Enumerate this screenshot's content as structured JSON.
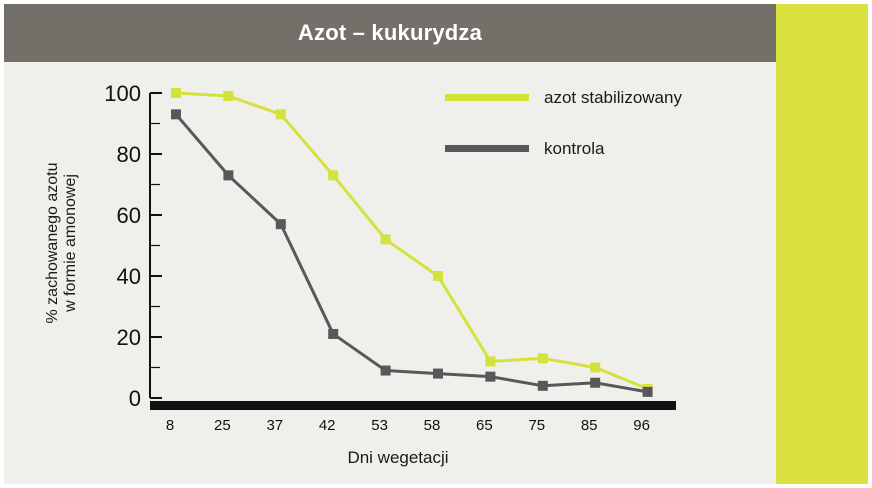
{
  "header": {
    "title": "Azot – kukurydza"
  },
  "colors": {
    "header_bg": "#727069",
    "accent_bar": "#d9e23f",
    "panel_bg": "#efefec"
  },
  "chart_data": {
    "type": "line",
    "title": "Azot – kukurydza",
    "xlabel": "Dni wegetacji",
    "ylabel_lines": [
      "% zachowanego azotu",
      "w formie amonowej"
    ],
    "categories": [
      "8",
      "25",
      "37",
      "42",
      "53",
      "58",
      "65",
      "75",
      "85",
      "96"
    ],
    "ylim": [
      0,
      100
    ],
    "yticks": [
      0,
      20,
      40,
      60,
      80,
      100
    ],
    "legend_position": "top-right",
    "series": [
      {
        "name": "azot stabilizowany",
        "color": "#d6e23c",
        "values": [
          100,
          99,
          93,
          73,
          52,
          40,
          12,
          13,
          10,
          3
        ]
      },
      {
        "name": "kontrola",
        "color": "#58585a",
        "values": [
          93,
          73,
          57,
          21,
          9,
          8,
          7,
          4,
          5,
          2
        ]
      }
    ]
  }
}
